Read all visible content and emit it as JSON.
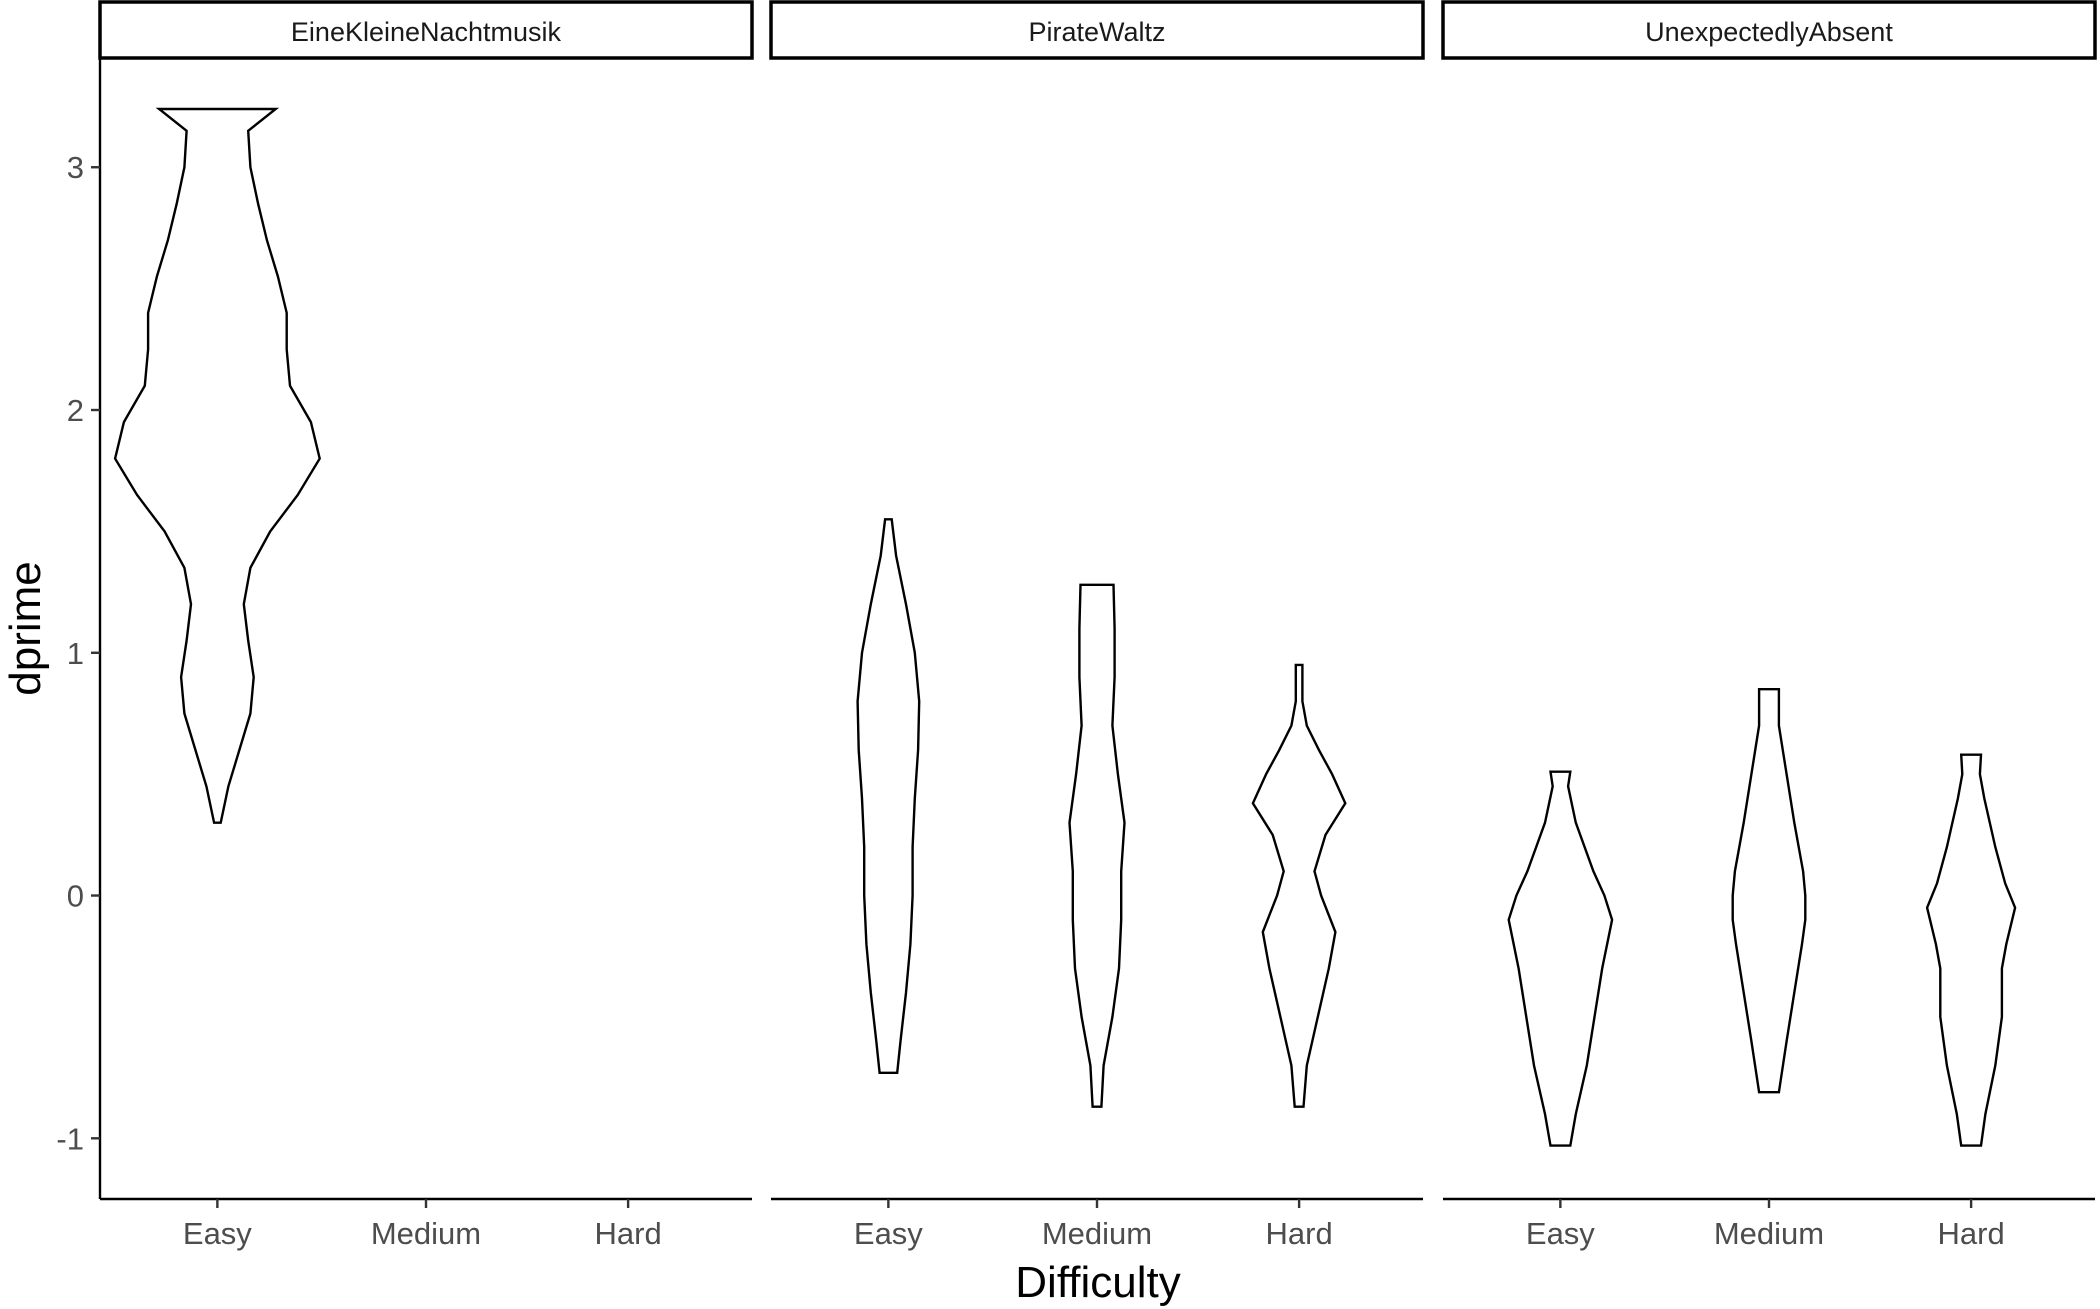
{
  "chart_data": {
    "type": "violin",
    "xlabel": "Difficulty",
    "ylabel": "dprime",
    "ylim": [
      -1.25,
      3.45
    ],
    "yticks": [
      "-1",
      "0",
      "1",
      "2",
      "3"
    ],
    "categories": [
      "Easy",
      "Medium",
      "Hard"
    ],
    "facets": [
      {
        "name": "EineKleineNachtmusik",
        "violins": [
          {
            "category": "Easy",
            "min": 0.3,
            "max": 3.24,
            "profile": [
              [
                0.3,
                0.03
              ],
              [
                0.45,
                0.1
              ],
              [
                0.6,
                0.2
              ],
              [
                0.75,
                0.3
              ],
              [
                0.9,
                0.33
              ],
              [
                1.05,
                0.28
              ],
              [
                1.2,
                0.24
              ],
              [
                1.35,
                0.3
              ],
              [
                1.5,
                0.48
              ],
              [
                1.65,
                0.73
              ],
              [
                1.8,
                0.93
              ],
              [
                1.95,
                0.85
              ],
              [
                2.1,
                0.66
              ],
              [
                2.25,
                0.63
              ],
              [
                2.4,
                0.63
              ],
              [
                2.55,
                0.55
              ],
              [
                2.7,
                0.45
              ],
              [
                2.85,
                0.37
              ],
              [
                3.0,
                0.3
              ],
              [
                3.15,
                0.28
              ],
              [
                3.24,
                0.53
              ]
            ]
          }
        ]
      },
      {
        "name": "PirateWaltz",
        "violins": [
          {
            "category": "Easy",
            "min": -0.73,
            "max": 1.55,
            "profile": [
              [
                -0.73,
                0.08
              ],
              [
                -0.6,
                0.11
              ],
              [
                -0.4,
                0.16
              ],
              [
                -0.2,
                0.2
              ],
              [
                0.0,
                0.22
              ],
              [
                0.2,
                0.22
              ],
              [
                0.4,
                0.24
              ],
              [
                0.6,
                0.27
              ],
              [
                0.8,
                0.28
              ],
              [
                1.0,
                0.24
              ],
              [
                1.2,
                0.16
              ],
              [
                1.4,
                0.07
              ],
              [
                1.55,
                0.03
              ]
            ]
          },
          {
            "category": "Medium",
            "min": -0.87,
            "max": 1.28,
            "profile": [
              [
                -0.87,
                0.04
              ],
              [
                -0.7,
                0.06
              ],
              [
                -0.5,
                0.14
              ],
              [
                -0.3,
                0.2
              ],
              [
                -0.1,
                0.22
              ],
              [
                0.1,
                0.22
              ],
              [
                0.3,
                0.25
              ],
              [
                0.5,
                0.19
              ],
              [
                0.7,
                0.14
              ],
              [
                0.9,
                0.16
              ],
              [
                1.1,
                0.16
              ],
              [
                1.28,
                0.15
              ]
            ]
          },
          {
            "category": "Hard",
            "min": -0.87,
            "max": 0.95,
            "profile": [
              [
                -0.87,
                0.04
              ],
              [
                -0.7,
                0.07
              ],
              [
                -0.5,
                0.17
              ],
              [
                -0.3,
                0.27
              ],
              [
                -0.15,
                0.33
              ],
              [
                0.0,
                0.2
              ],
              [
                0.1,
                0.14
              ],
              [
                0.25,
                0.24
              ],
              [
                0.38,
                0.42
              ],
              [
                0.5,
                0.3
              ],
              [
                0.6,
                0.18
              ],
              [
                0.7,
                0.07
              ],
              [
                0.8,
                0.03
              ],
              [
                0.95,
                0.03
              ]
            ]
          }
        ]
      },
      {
        "name": "UnexpectedlyAbsent",
        "violins": [
          {
            "category": "Easy",
            "min": -1.03,
            "max": 0.51,
            "profile": [
              [
                -1.03,
                0.09
              ],
              [
                -0.9,
                0.14
              ],
              [
                -0.7,
                0.24
              ],
              [
                -0.5,
                0.31
              ],
              [
                -0.3,
                0.38
              ],
              [
                -0.1,
                0.47
              ],
              [
                0.0,
                0.4
              ],
              [
                0.1,
                0.3
              ],
              [
                0.3,
                0.14
              ],
              [
                0.45,
                0.07
              ],
              [
                0.51,
                0.09
              ]
            ]
          },
          {
            "category": "Medium",
            "min": -0.81,
            "max": 0.85,
            "profile": [
              [
                -0.81,
                0.09
              ],
              [
                -0.6,
                0.16
              ],
              [
                -0.4,
                0.23
              ],
              [
                -0.2,
                0.3
              ],
              [
                -0.1,
                0.33
              ],
              [
                0.0,
                0.33
              ],
              [
                0.1,
                0.31
              ],
              [
                0.3,
                0.23
              ],
              [
                0.5,
                0.16
              ],
              [
                0.7,
                0.09
              ],
              [
                0.85,
                0.09
              ]
            ]
          },
          {
            "category": "Hard",
            "min": -1.03,
            "max": 0.58,
            "profile": [
              [
                -1.03,
                0.09
              ],
              [
                -0.9,
                0.13
              ],
              [
                -0.7,
                0.22
              ],
              [
                -0.5,
                0.28
              ],
              [
                -0.3,
                0.28
              ],
              [
                -0.2,
                0.32
              ],
              [
                -0.05,
                0.4
              ],
              [
                0.05,
                0.31
              ],
              [
                0.2,
                0.22
              ],
              [
                0.4,
                0.12
              ],
              [
                0.5,
                0.08
              ],
              [
                0.58,
                0.09
              ]
            ]
          }
        ]
      }
    ]
  }
}
